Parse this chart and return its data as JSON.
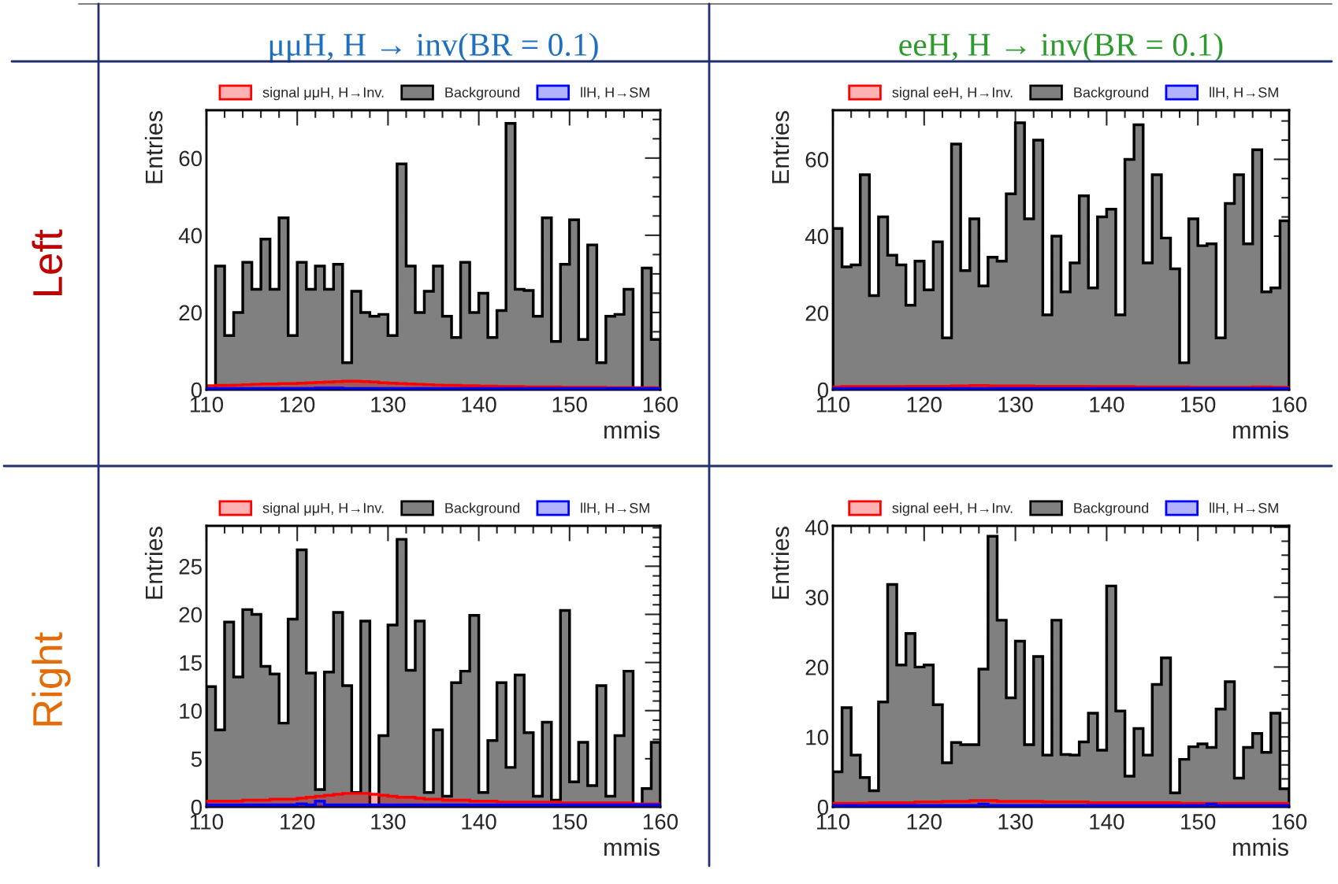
{
  "chart_data": [
    {
      "type": "histogram",
      "title": "μμH, H → inv(BR = 0.1)",
      "xlabel": "mmis",
      "ylabel": "Entries",
      "annotations": [
        "Left"
      ],
      "legend": "top",
      "grid": false,
      "bins": [
        110,
        111,
        112,
        113,
        114,
        115,
        116,
        117,
        118,
        119,
        120,
        121,
        122,
        123,
        124,
        125,
        126,
        127,
        128,
        129,
        130,
        131,
        132,
        133,
        134,
        135,
        136,
        137,
        138,
        139,
        140,
        141,
        142,
        143,
        144,
        145,
        146,
        147,
        148,
        149,
        150,
        151,
        152,
        153,
        154,
        155,
        156,
        157,
        158,
        159,
        160
      ],
      "xlim": [
        110,
        160
      ],
      "xticks": [
        110,
        120,
        130,
        140,
        150,
        160
      ],
      "ylim": [
        0,
        72.4
      ],
      "yticks": [
        0,
        20,
        40,
        60
      ],
      "series": [
        {
          "name": "signal μμH, H→Inv.",
          "color": "#ff0000",
          "values": [
            1.0,
            1.1,
            1.1,
            1.2,
            1.3,
            1.4,
            1.5,
            1.5,
            1.6,
            1.6,
            1.7,
            1.8,
            1.9,
            2.0,
            2.1,
            2.2,
            2.2,
            2.1,
            2.0,
            1.8,
            1.7,
            1.6,
            1.5,
            1.4,
            1.3,
            1.2,
            1.1,
            1.1,
            1.0,
            1.0,
            0.9,
            0.9,
            0.8,
            0.8,
            0.8,
            0.7,
            0.7,
            0.7,
            0.7,
            0.6,
            0.6,
            0.6,
            0.6,
            0.6,
            0.5,
            0.5,
            0.5,
            0.5,
            0.5,
            0.5
          ]
        },
        {
          "name": "Background",
          "color": "#808080",
          "values": [
            0,
            32,
            14,
            20,
            33,
            26,
            39,
            26,
            44.5,
            14,
            33,
            26,
            32,
            26,
            32.5,
            7,
            25.5,
            20,
            19,
            19.5,
            14,
            58.5,
            32,
            20,
            25.5,
            32,
            19,
            13.5,
            33,
            20,
            25,
            13.5,
            20.5,
            69,
            26,
            25.7,
            19,
            44.5,
            12.5,
            32.5,
            44,
            13,
            37.5,
            7,
            19,
            19.5,
            26,
            0,
            31.5,
            13
          ]
        },
        {
          "name": "llH, H→SM",
          "color": "#0000ff",
          "values": [
            0.3,
            0.3,
            0.3,
            0.3,
            0.3,
            0.3,
            0.3,
            0.3,
            0.3,
            0.3,
            0.3,
            0.3,
            0.4,
            0.4,
            0.4,
            0.3,
            0.3,
            0.3,
            0.3,
            0.3,
            0.3,
            0.3,
            0.3,
            0.3,
            0.3,
            0.3,
            0.3,
            0.3,
            0.3,
            0.3,
            0.3,
            0.3,
            0.3,
            0.3,
            0.3,
            0.3,
            0.3,
            0.3,
            0.3,
            0.3,
            0.3,
            0.3,
            0.3,
            0.3,
            0.3,
            0.3,
            0.3,
            0.3,
            0.3,
            0.3
          ]
        }
      ]
    },
    {
      "type": "histogram",
      "title": "eeH, H → inv(BR = 0.1)",
      "xlabel": "mmis",
      "ylabel": "Entries",
      "legend": "top",
      "grid": false,
      "bins": [
        110,
        111,
        112,
        113,
        114,
        115,
        116,
        117,
        118,
        119,
        120,
        121,
        122,
        123,
        124,
        125,
        126,
        127,
        128,
        129,
        130,
        131,
        132,
        133,
        134,
        135,
        136,
        137,
        138,
        139,
        140,
        141,
        142,
        143,
        144,
        145,
        146,
        147,
        148,
        149,
        150,
        151,
        152,
        153,
        154,
        155,
        156,
        157,
        158,
        159,
        160
      ],
      "xlim": [
        110,
        160
      ],
      "xticks": [
        110,
        120,
        130,
        140,
        150,
        160
      ],
      "ylim": [
        0,
        72.8
      ],
      "yticks": [
        0,
        20,
        40,
        60
      ],
      "series": [
        {
          "name": "signal eeH, H→Inv.",
          "color": "#ff0000",
          "values": [
            0.7,
            0.8,
            0.8,
            0.8,
            0.8,
            0.8,
            0.8,
            0.8,
            0.9,
            0.9,
            0.9,
            0.9,
            0.9,
            1.0,
            1.0,
            1.1,
            1.1,
            1.0,
            1.0,
            1.0,
            1.0,
            1.0,
            0.9,
            0.9,
            0.9,
            0.9,
            0.9,
            0.9,
            0.8,
            0.8,
            0.8,
            0.8,
            0.8,
            0.7,
            0.7,
            0.7,
            0.7,
            0.7,
            0.7,
            0.6,
            0.6,
            0.6,
            0.6,
            0.6,
            0.6,
            0.6,
            0.7,
            0.7,
            0.6,
            0.6
          ]
        },
        {
          "name": "Background",
          "color": "#808080",
          "values": [
            42,
            32,
            32.5,
            56,
            24.5,
            45,
            35,
            32.5,
            22,
            33.5,
            26,
            38.5,
            13.5,
            64,
            31,
            44.5,
            27,
            34.5,
            33.5,
            51,
            69.5,
            44.5,
            65,
            19.5,
            40,
            25.5,
            33,
            50.5,
            26.5,
            45,
            47,
            19.5,
            60,
            69,
            33,
            56,
            39.5,
            31.5,
            7,
            44.5,
            37.5,
            38,
            13.5,
            48.5,
            56,
            38,
            62.5,
            25.5,
            26.5,
            44
          ]
        },
        {
          "name": "llH, H→SM",
          "color": "#0000ff",
          "values": [
            0.3,
            0.3,
            0.3,
            0.3,
            0.3,
            0.3,
            0.3,
            0.3,
            0.3,
            0.3,
            0.3,
            0.3,
            0.3,
            0.3,
            0.3,
            0.3,
            0.3,
            0.3,
            0.3,
            0.3,
            0.3,
            0.3,
            0.3,
            0.3,
            0.3,
            0.3,
            0.3,
            0.3,
            0.3,
            0.3,
            0.3,
            0.3,
            0.3,
            0.3,
            0.3,
            0.3,
            0.3,
            0.3,
            0.3,
            0.3,
            0.3,
            0.3,
            0.3,
            0.3,
            0.3,
            0.3,
            0.3,
            0.3,
            0.3,
            0.3
          ]
        }
      ]
    },
    {
      "type": "histogram",
      "xlabel": "mmis",
      "ylabel": "Entries",
      "annotations": [
        "Right"
      ],
      "legend": "top",
      "grid": false,
      "bins": [
        110,
        111,
        112,
        113,
        114,
        115,
        116,
        117,
        118,
        119,
        120,
        121,
        122,
        123,
        124,
        125,
        126,
        127,
        128,
        129,
        130,
        131,
        132,
        133,
        134,
        135,
        136,
        137,
        138,
        139,
        140,
        141,
        142,
        143,
        144,
        145,
        146,
        147,
        148,
        149,
        150,
        151,
        152,
        153,
        154,
        155,
        156,
        157,
        158,
        159,
        160
      ],
      "xlim": [
        110,
        160
      ],
      "xticks": [
        110,
        120,
        130,
        140,
        150,
        160
      ],
      "ylim": [
        0,
        29.2
      ],
      "yticks": [
        0,
        5,
        10,
        15,
        20,
        25
      ],
      "series": [
        {
          "name": "signal μμH, H→Inv.",
          "color": "#ff0000",
          "values": [
            0.6,
            0.6,
            0.6,
            0.6,
            0.7,
            0.7,
            0.7,
            0.8,
            0.8,
            0.8,
            0.9,
            1.0,
            1.1,
            1.2,
            1.3,
            1.4,
            1.4,
            1.4,
            1.3,
            1.2,
            1.1,
            1.0,
            1.0,
            0.9,
            0.8,
            0.8,
            0.7,
            0.7,
            0.7,
            0.6,
            0.6,
            0.6,
            0.5,
            0.5,
            0.5,
            0.5,
            0.5,
            0.5,
            0.5,
            0.4,
            0.4,
            0.4,
            0.4,
            0.4,
            0.4,
            0.4,
            0.4,
            0.3,
            0.3,
            0.3
          ]
        },
        {
          "name": "Background",
          "color": "#808080",
          "values": [
            12.5,
            8,
            19.2,
            13.5,
            20.5,
            20,
            14.6,
            13.8,
            8.7,
            19.5,
            26.7,
            13.9,
            1.8,
            14,
            20.2,
            12.6,
            1.5,
            19.3,
            0,
            7.4,
            18.9,
            27.8,
            14.2,
            19.3,
            1.5,
            8,
            1.1,
            12.9,
            14.1,
            19.9,
            1.5,
            6.9,
            12.9,
            4.1,
            13.7,
            7.7,
            1.1,
            8.8,
            0.7,
            20.4,
            2.6,
            6.7,
            2.2,
            12.6,
            1.1,
            7.4,
            14.1,
            0,
            1.9,
            6.7
          ]
        },
        {
          "name": "llH, H→SM",
          "color": "#0000ff",
          "values": [
            0.2,
            0.2,
            0.2,
            0.2,
            0.2,
            0.2,
            0.2,
            0.2,
            0.2,
            0.2,
            0.3,
            0.2,
            0.6,
            0.2,
            0.2,
            0.2,
            0.2,
            0.2,
            0.2,
            0.2,
            0.2,
            0.2,
            0.2,
            0.2,
            0.2,
            0.2,
            0.2,
            0.2,
            0.2,
            0.2,
            0.2,
            0.2,
            0.2,
            0.2,
            0.2,
            0.2,
            0.2,
            0.2,
            0.2,
            0.2,
            0.2,
            0.2,
            0.2,
            0.2,
            0.2,
            0.2,
            0.2,
            0.2,
            0.2,
            0.2
          ]
        }
      ]
    },
    {
      "type": "histogram",
      "xlabel": "mmis",
      "ylabel": "Entries",
      "legend": "top",
      "grid": false,
      "bins": [
        110,
        111,
        112,
        113,
        114,
        115,
        116,
        117,
        118,
        119,
        120,
        121,
        122,
        123,
        124,
        125,
        126,
        127,
        128,
        129,
        130,
        131,
        132,
        133,
        134,
        135,
        136,
        137,
        138,
        139,
        140,
        141,
        142,
        143,
        144,
        145,
        146,
        147,
        148,
        149,
        150,
        151,
        152,
        153,
        154,
        155,
        156,
        157,
        158,
        159,
        160
      ],
      "xlim": [
        110,
        160
      ],
      "xticks": [
        110,
        120,
        130,
        140,
        150,
        160
      ],
      "ylim": [
        0,
        40.2
      ],
      "yticks": [
        0,
        10,
        20,
        30,
        40
      ],
      "series": [
        {
          "name": "signal eeH, H→Inv.",
          "color": "#ff0000",
          "values": [
            0.5,
            0.5,
            0.5,
            0.5,
            0.6,
            0.6,
            0.6,
            0.6,
            0.6,
            0.7,
            0.7,
            0.7,
            0.8,
            0.8,
            0.8,
            0.9,
            0.9,
            0.9,
            0.8,
            0.8,
            0.8,
            0.8,
            0.8,
            0.7,
            0.7,
            0.7,
            0.7,
            0.7,
            0.6,
            0.6,
            0.6,
            0.6,
            0.6,
            0.6,
            0.6,
            0.6,
            0.6,
            0.6,
            0.5,
            0.5,
            0.5,
            0.5,
            0.5,
            0.5,
            0.5,
            0.5,
            0.5,
            0.5,
            0.5,
            0.5
          ]
        },
        {
          "name": "Background",
          "color": "#808080",
          "values": [
            5,
            14.2,
            7.4,
            4.2,
            2.3,
            15,
            31.8,
            20.3,
            24.8,
            20,
            20.3,
            14.6,
            6.3,
            9.2,
            8.9,
            8.9,
            19.7,
            38.7,
            26.7,
            15.6,
            23.7,
            8.9,
            21.5,
            7.4,
            26.7,
            7.5,
            7.4,
            9.3,
            13.4,
            8.1,
            31.6,
            13.7,
            4.4,
            11.2,
            7.4,
            17.5,
            21.3,
            2,
            6.8,
            8.6,
            9,
            8.5,
            14,
            17.9,
            4.1,
            8.5,
            10.5,
            7.8,
            13.4,
            2.6
          ]
        },
        {
          "name": "llH, H→SM",
          "color": "#0000ff",
          "values": [
            0.2,
            0.2,
            0.2,
            0.2,
            0.2,
            0.2,
            0.2,
            0.2,
            0.2,
            0.2,
            0.2,
            0.2,
            0.2,
            0.2,
            0.2,
            0.2,
            0.4,
            0.2,
            0.2,
            0.2,
            0.2,
            0.2,
            0.2,
            0.2,
            0.2,
            0.2,
            0.2,
            0.2,
            0.2,
            0.2,
            0.2,
            0.2,
            0.2,
            0.2,
            0.2,
            0.2,
            0.2,
            0.2,
            0.2,
            0.2,
            0.2,
            0.4,
            0.2,
            0.2,
            0.2,
            0.2,
            0.2,
            0.2,
            0.2,
            0.2
          ]
        }
      ]
    }
  ]
}
